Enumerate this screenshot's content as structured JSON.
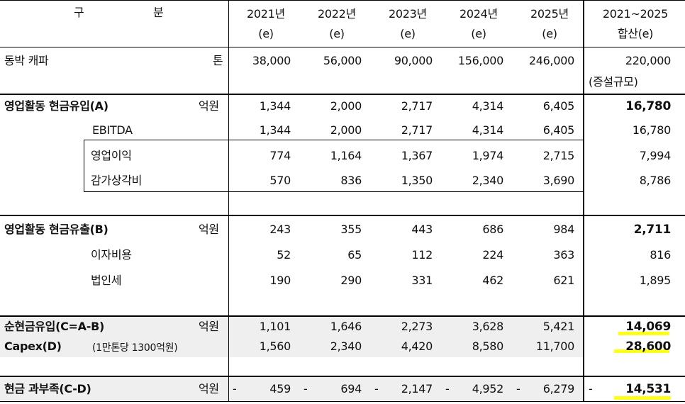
{
  "header": {
    "col0_a": "구",
    "col0_b": "분",
    "years": [
      "2021년",
      "2022년",
      "2023년",
      "2024년",
      "2025년"
    ],
    "sub": [
      "(e)",
      "(e)",
      "(e)",
      "(e)",
      "(e)"
    ],
    "total_a": "2021~2025",
    "total_b": "합산(e)"
  },
  "rows": {
    "capa": {
      "label": "동박 캐파",
      "unit": "톤",
      "values": [
        "38,000",
        "56,000",
        "90,000",
        "156,000",
        "246,000"
      ],
      "total": "220,000",
      "note": "(증설규모)"
    },
    "inflow": {
      "label": "영업활동 현금유입(A)",
      "unit": "억원",
      "values": [
        "1,344",
        "2,000",
        "2,717",
        "4,314",
        "6,405"
      ],
      "total": "16,780"
    },
    "ebitda": {
      "label": "EBITDA",
      "values": [
        "1,344",
        "2,000",
        "2,717",
        "4,314",
        "6,405"
      ],
      "total": "16,780"
    },
    "op_income": {
      "label": "영업이익",
      "values": [
        "774",
        "1,164",
        "1,367",
        "1,974",
        "2,715"
      ],
      "total": "7,994"
    },
    "depreciation": {
      "label": "감가상각비",
      "values": [
        "570",
        "836",
        "1,350",
        "2,340",
        "3,690"
      ],
      "total": "8,786"
    },
    "outflow": {
      "label": "영업활동 현금유출(B)",
      "unit": "억원",
      "values": [
        "243",
        "355",
        "443",
        "686",
        "984"
      ],
      "total": "2,711"
    },
    "interest": {
      "label": "이자비용",
      "values": [
        "52",
        "65",
        "112",
        "224",
        "363"
      ],
      "total": "816"
    },
    "tax": {
      "label": "법인세",
      "values": [
        "190",
        "290",
        "331",
        "462",
        "621"
      ],
      "total": "1,895"
    },
    "net": {
      "label": "순현금유입(C=A-B)",
      "unit": "억원",
      "values": [
        "1,101",
        "1,646",
        "2,273",
        "3,628",
        "5,421"
      ],
      "total": "14,069"
    },
    "capex": {
      "label": "Capex(D)",
      "label_note": "(1만톤당 1300억원)",
      "values": [
        "1,560",
        "2,340",
        "4,420",
        "8,580",
        "11,700"
      ],
      "total": "28,600"
    },
    "shortfall": {
      "label": "현금 과부족(C-D)",
      "unit": "억원",
      "minus": "-",
      "values": [
        "459",
        "694",
        "2,147",
        "4,952",
        "6,279"
      ],
      "total": "14,531"
    }
  },
  "colors": {
    "highlight": "#ffff1a",
    "shade": "#efefef",
    "grid": "#000000"
  }
}
